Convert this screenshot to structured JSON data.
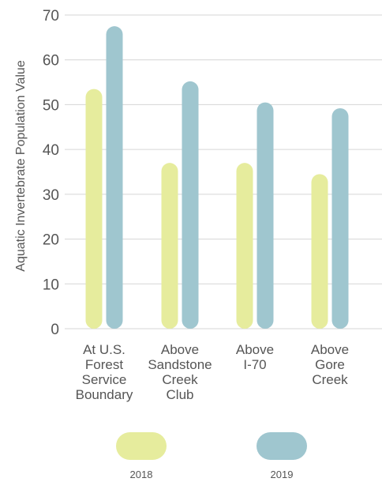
{
  "chart_data": {
    "type": "bar",
    "title": "",
    "xlabel": "",
    "ylabel": "Aquatic Invertebrate Population Value",
    "ylim": [
      0,
      70
    ],
    "yticks": [
      0,
      10,
      20,
      30,
      40,
      50,
      60,
      70
    ],
    "grid": true,
    "legend_position": "bottom",
    "categories": [
      [
        "At U.S.",
        "Forest",
        "Service",
        "Boundary"
      ],
      [
        "Above",
        "Sandstone",
        "Creek",
        "Club"
      ],
      [
        "Above",
        "I-70"
      ],
      [
        "Above",
        "Gore",
        "Creek"
      ]
    ],
    "series": [
      {
        "name": "2018",
        "color": "#e6ec9d",
        "values": [
          53.5,
          37,
          37,
          34.5
        ]
      },
      {
        "name": "2019",
        "color": "#9fc6cf",
        "values": [
          67.5,
          55.2,
          50.5,
          49.2
        ]
      }
    ]
  }
}
